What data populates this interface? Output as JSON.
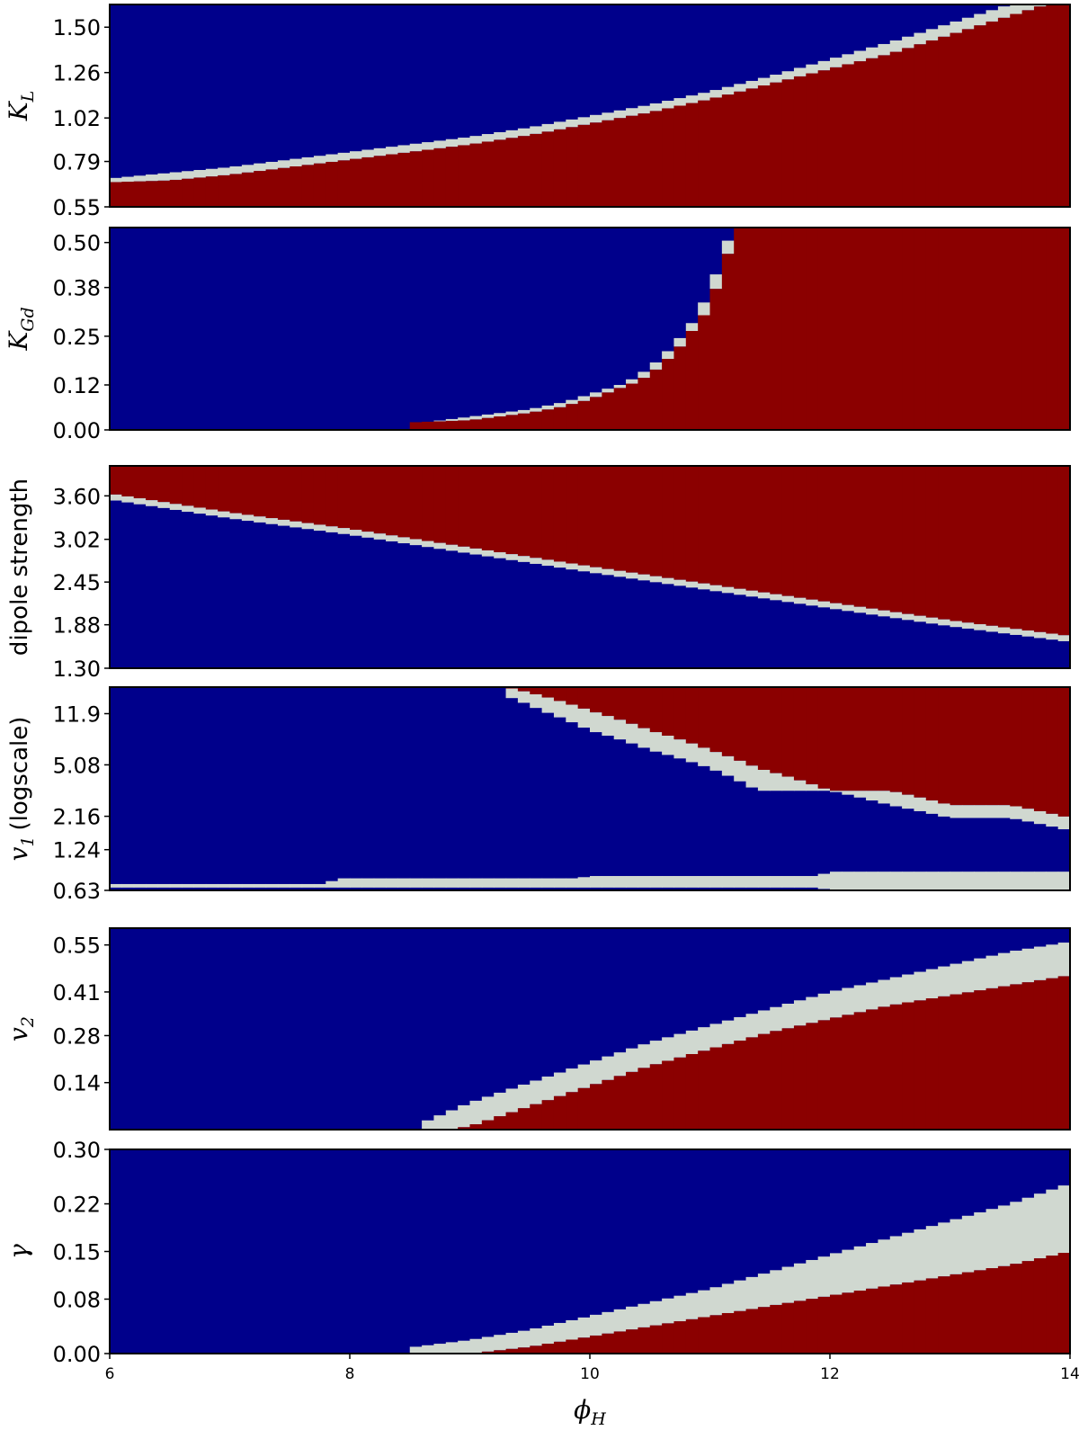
{
  "colors": {
    "region_a": "#00008b",
    "region_b": "#8b0000",
    "transition": "#d0d8d0"
  },
  "chart_data": [
    {
      "type": "heatmap",
      "ylabel": "K",
      "ylabel_sub": "L",
      "ylabel_style": "math",
      "xlim": [
        6,
        14
      ],
      "ylim": [
        0.55,
        1.62
      ],
      "ytick_values": [
        0.55,
        0.79,
        1.02,
        1.26,
        1.5
      ],
      "ytick_labels": [
        "0.55",
        "0.79",
        "1.02",
        "1.26",
        "1.50"
      ],
      "transition_x": [
        6.0,
        6.5,
        7.0,
        7.5,
        8.0,
        8.5,
        9.0,
        9.5,
        10.0,
        10.5,
        11.0,
        11.5,
        12.0,
        12.5,
        13.0,
        13.5,
        14.0
      ],
      "transition_lower": [
        0.68,
        0.69,
        0.72,
        0.76,
        0.8,
        0.84,
        0.88,
        0.93,
        0.99,
        1.05,
        1.12,
        1.2,
        1.28,
        1.36,
        1.46,
        1.56,
        1.66
      ],
      "transition_upper": [
        0.7,
        0.73,
        0.76,
        0.8,
        0.84,
        0.88,
        0.92,
        0.97,
        1.03,
        1.09,
        1.16,
        1.24,
        1.33,
        1.42,
        1.52,
        1.62,
        1.72
      ]
    },
    {
      "type": "heatmap",
      "ylabel": "K",
      "ylabel_sub": "Gd",
      "ylabel_style": "math",
      "xlim": [
        6,
        14
      ],
      "ylim": [
        0.0,
        0.54
      ],
      "ytick_values": [
        0.0,
        0.12,
        0.25,
        0.38,
        0.5
      ],
      "ytick_labels": [
        "0.00",
        "0.12",
        "0.25",
        "0.38",
        "0.50"
      ],
      "transition_x": [
        8.5,
        9.0,
        9.5,
        9.8,
        10.0,
        10.3,
        10.5,
        10.7,
        10.9,
        11.0,
        11.1,
        11.2
      ],
      "transition_lower": [
        -0.01,
        0.01,
        0.03,
        0.05,
        0.07,
        0.1,
        0.14,
        0.2,
        0.28,
        0.35,
        0.43,
        0.53
      ],
      "transition_upper": [
        -0.01,
        0.01,
        0.03,
        0.05,
        0.07,
        0.1,
        0.14,
        0.2,
        0.28,
        0.35,
        0.43,
        0.53
      ],
      "transition_offset_x": [
        0.0,
        0.35,
        0.35,
        0.22,
        0.18,
        0.12,
        0.1,
        0.08,
        0.06,
        0.06,
        0.05,
        0.03
      ]
    },
    {
      "type": "heatmap",
      "ylabel": "dipole strength",
      "ylabel_style": "plain",
      "xlim": [
        6,
        14
      ],
      "ylim": [
        1.3,
        4.0
      ],
      "ytick_values": [
        1.3,
        1.88,
        2.45,
        3.02,
        3.6
      ],
      "ytick_labels": [
        "1.30",
        "1.88",
        "2.45",
        "3.02",
        "3.60"
      ],
      "transition_x": [
        6.0,
        7.0,
        8.0,
        9.0,
        10.0,
        11.0,
        12.0,
        13.0,
        14.0
      ],
      "transition_lower": [
        3.55,
        3.3,
        3.08,
        2.83,
        2.58,
        2.34,
        2.1,
        1.86,
        1.65
      ],
      "transition_upper": [
        3.63,
        3.38,
        3.16,
        2.91,
        2.66,
        2.42,
        2.18,
        1.94,
        1.73
      ],
      "region_below": "region_a",
      "region_above": "region_b"
    },
    {
      "type": "heatmap",
      "ylabel": "v",
      "ylabel_sub": "1",
      "ylabel_suffix": "(logscale)",
      "ylabel_style": "mixed",
      "xlim": [
        6,
        14
      ],
      "ylim_log": [
        0.63,
        18.5
      ],
      "ytick_values": [
        0.63,
        1.24,
        2.16,
        5.08,
        11.9
      ],
      "ytick_labels": [
        "0.63",
        "1.24",
        "2.16",
        "5.08",
        "11.9"
      ],
      "upper_band_x": [
        9.3,
        9.6,
        10.0,
        10.5,
        11.0,
        11.4,
        12.0,
        12.5,
        13.0,
        13.5,
        14.0
      ],
      "upper_band_lower": [
        16.0,
        12.5,
        9.0,
        6.5,
        4.8,
        3.3,
        3.3,
        2.6,
        2.1,
        2.1,
        1.7
      ],
      "upper_band_upper": [
        18.5,
        16.0,
        12.5,
        9.0,
        6.5,
        4.8,
        3.3,
        3.3,
        2.6,
        2.6,
        2.1
      ],
      "lower_band_x": [
        6.0,
        7.8,
        7.9,
        9.9,
        10.0,
        11.9,
        12.0,
        14.0
      ],
      "lower_band_lower": [
        0.66,
        0.66,
        0.66,
        0.66,
        0.66,
        0.66,
        0.63,
        0.63
      ],
      "lower_band_upper": [
        0.7,
        0.7,
        0.77,
        0.77,
        0.8,
        0.8,
        0.86,
        0.86
      ]
    },
    {
      "type": "heatmap",
      "ylabel": "v",
      "ylabel_sub": "2",
      "ylabel_style": "math",
      "xlim": [
        6,
        14
      ],
      "ylim": [
        0.0,
        0.6
      ],
      "ytick_values": [
        0.14,
        0.28,
        0.41,
        0.55
      ],
      "ytick_labels": [
        "0.14",
        "0.28",
        "0.41",
        "0.55"
      ],
      "transition_x": [
        8.6,
        9.0,
        9.5,
        10.0,
        10.5,
        11.0,
        11.5,
        12.0,
        12.5,
        13.0,
        13.5,
        14.0
      ],
      "transition_lower": [
        -0.01,
        0.01,
        0.07,
        0.13,
        0.19,
        0.24,
        0.29,
        0.33,
        0.37,
        0.4,
        0.43,
        0.46
      ],
      "transition_upper": [
        0.02,
        0.08,
        0.14,
        0.2,
        0.26,
        0.31,
        0.36,
        0.41,
        0.45,
        0.49,
        0.53,
        0.56
      ]
    },
    {
      "type": "heatmap",
      "ylabel": "γ",
      "ylabel_style": "math",
      "xlim": [
        6,
        14
      ],
      "ylim": [
        0.0,
        0.3
      ],
      "ytick_values": [
        0.0,
        0.08,
        0.15,
        0.22,
        0.3
      ],
      "ytick_labels": [
        "0.00",
        "0.08",
        "0.15",
        "0.22",
        "0.30"
      ],
      "xtick_values": [
        6,
        8,
        10,
        12,
        14
      ],
      "xtick_labels": [
        "6",
        "8",
        "10",
        "12",
        "14"
      ],
      "xlabel": "ϕ",
      "xlabel_sub": "H",
      "transition_x": [
        8.55,
        9.0,
        9.5,
        10.0,
        10.5,
        11.0,
        11.5,
        12.0,
        12.5,
        13.0,
        13.5,
        14.0
      ],
      "transition_lower": [
        -0.01,
        0.0,
        0.01,
        0.025,
        0.04,
        0.055,
        0.07,
        0.085,
        0.1,
        0.115,
        0.13,
        0.15
      ],
      "transition_upper": [
        0.01,
        0.02,
        0.035,
        0.055,
        0.075,
        0.095,
        0.12,
        0.145,
        0.17,
        0.195,
        0.22,
        0.25
      ]
    }
  ]
}
